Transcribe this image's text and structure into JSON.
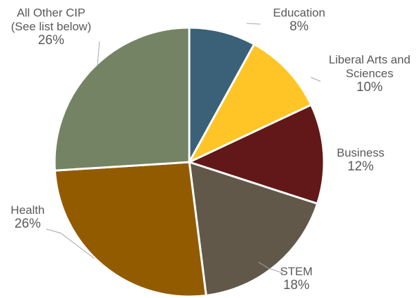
{
  "chart_data": {
    "type": "pie",
    "title": "",
    "start_angle_deg": 0,
    "direction": "clockwise",
    "slices": [
      {
        "name": "Education",
        "label_lines": [
          "Education",
          "8%"
        ],
        "value": 8,
        "color": "#3b6178"
      },
      {
        "name": "Liberal Arts and Sciences",
        "label_lines": [
          "Liberal Arts and",
          "Sciences",
          "10%"
        ],
        "value": 10,
        "color": "#ffc425"
      },
      {
        "name": "Business",
        "label_lines": [
          "Business",
          "12%"
        ],
        "value": 12,
        "color": "#621818"
      },
      {
        "name": "STEM",
        "label_lines": [
          "STEM",
          "18%"
        ],
        "value": 18,
        "color": "#615849"
      },
      {
        "name": "Health",
        "label_lines": [
          "Health",
          "26%"
        ],
        "value": 26,
        "color": "#935b00"
      },
      {
        "name": "All Other CIP (See list below)",
        "label_lines": [
          "All Other CIP",
          "(See list below)",
          "26%"
        ],
        "value": 26,
        "color": "#748364"
      }
    ]
  }
}
